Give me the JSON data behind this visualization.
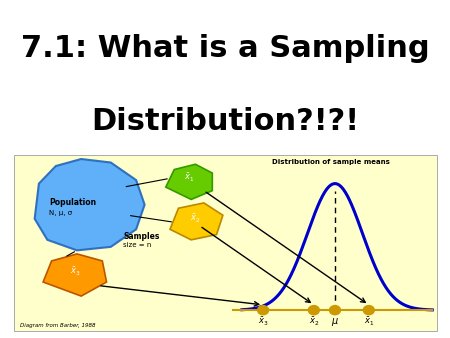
{
  "title_line1": "7.1: What is a Sampling",
  "title_line2": "Distribution?!?!",
  "title_fontsize": 22,
  "title_fontweight": "bold",
  "bg_color": "#ffffff",
  "diagram_bg": "#ffffcc",
  "population_color": "#4da6ff",
  "sample1_color": "#66cc00",
  "sample2_color": "#ffcc00",
  "sample3_color": "#ff9900",
  "curve_color": "#0000cc",
  "axis_color": "#cc9900",
  "diagram_citation": "Diagram from Barber, 1988"
}
